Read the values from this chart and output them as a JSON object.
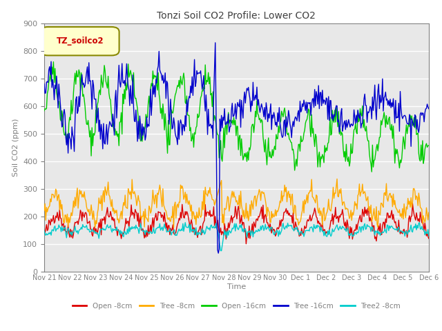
{
  "title": "Tonzi Soil CO2 Profile: Lower CO2",
  "xlabel": "Time",
  "ylabel": "Soil CO2 (ppm)",
  "ylim": [
    0,
    900
  ],
  "yticks": [
    0,
    100,
    200,
    300,
    400,
    500,
    600,
    700,
    800,
    900
  ],
  "legend_label": "TZ_soilco2",
  "series": {
    "Open_8cm": {
      "color": "#dd0000",
      "label": "Open -8cm"
    },
    "Tree_8cm": {
      "color": "#ffaa00",
      "label": "Tree -8cm"
    },
    "Open_16cm": {
      "color": "#00cc00",
      "label": "Open -16cm"
    },
    "Tree_16cm": {
      "color": "#0000cc",
      "label": "Tree -16cm"
    },
    "Tree2_8cm": {
      "color": "#00cccc",
      "label": "Tree2 -8cm"
    }
  },
  "background_color": "#ffffff",
  "plot_bg_color": "#e8e8e8",
  "grid_color": "#ffffff",
  "title_color": "#404040",
  "axis_color": "#808080",
  "tz_box_facecolor": "#ffffcc",
  "tz_box_edgecolor": "#888800",
  "tz_text_color": "#cc0000"
}
